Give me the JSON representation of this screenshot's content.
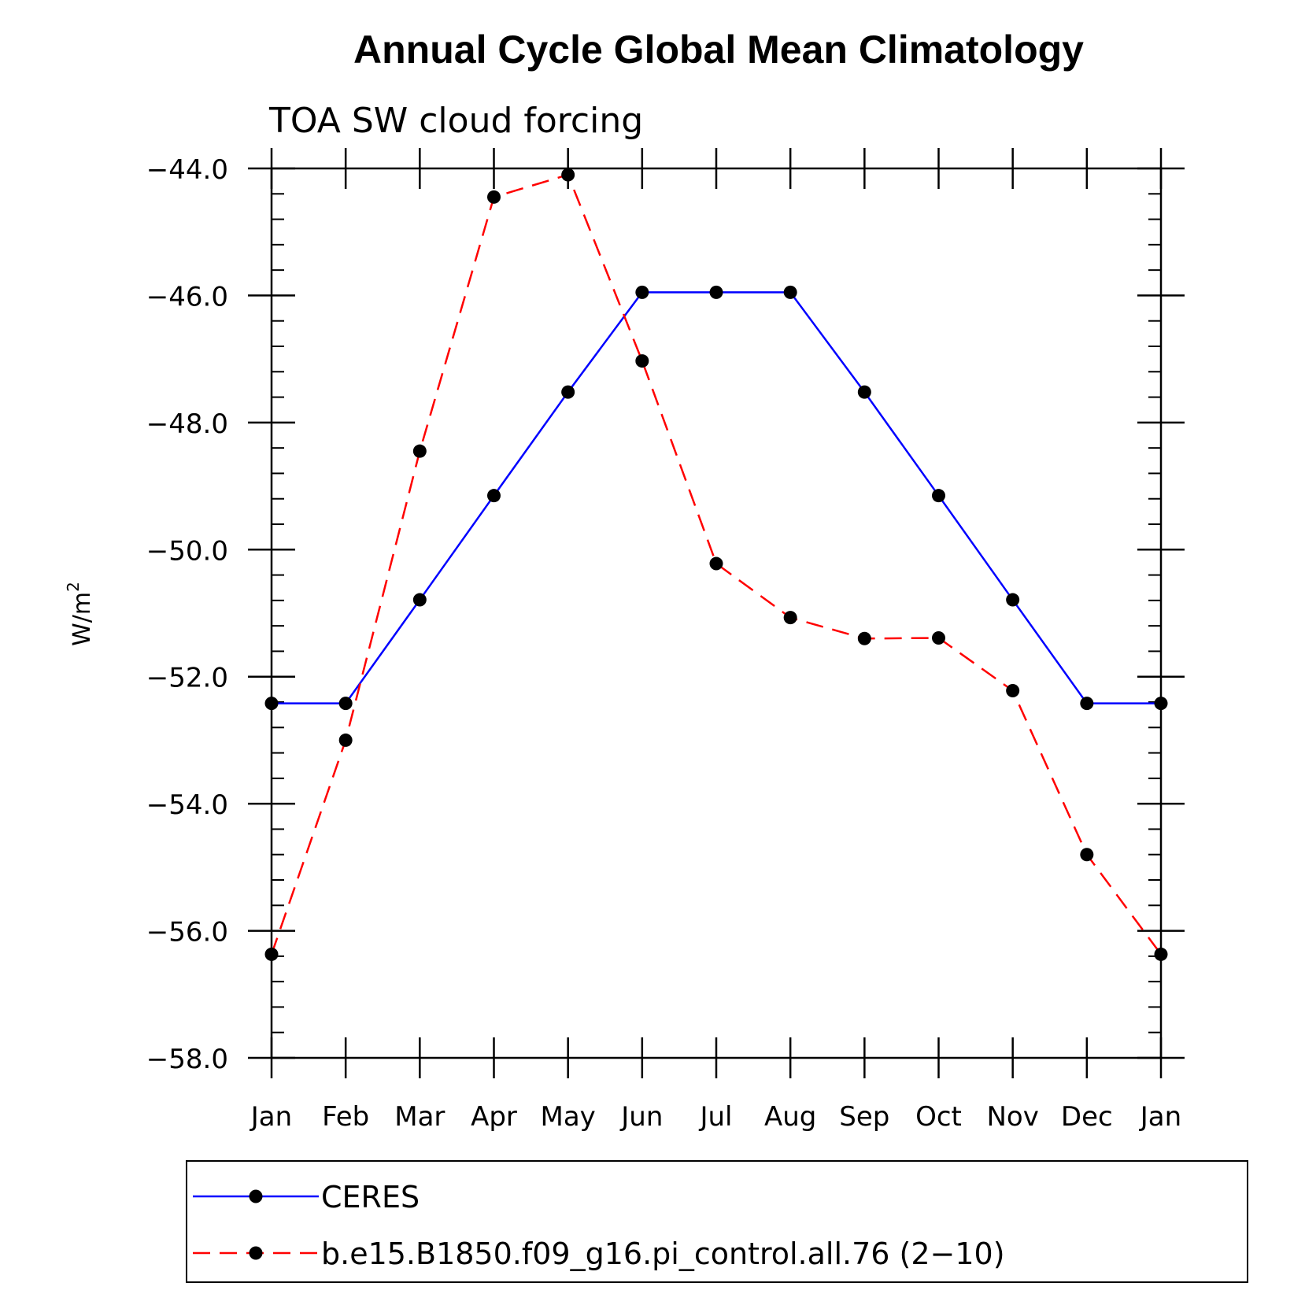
{
  "chart_data": {
    "type": "line",
    "title": "Annual Cycle Global Mean Climatology",
    "subtitle": "TOA SW cloud forcing",
    "ylabel": "W/m",
    "ylabel_superscript": "2",
    "xlabel": "",
    "categories": [
      "Jan",
      "Feb",
      "Mar",
      "Apr",
      "May",
      "Jun",
      "Jul",
      "Aug",
      "Sep",
      "Oct",
      "Nov",
      "Dec",
      "Jan"
    ],
    "ylim": [
      -58.0,
      -44.0
    ],
    "yticks": [
      -44.0,
      -46.0,
      -48.0,
      -50.0,
      -52.0,
      -54.0,
      -56.0,
      -58.0
    ],
    "ytick_labels": [
      "−44.0",
      "−46.0",
      "−48.0",
      "−50.0",
      "−52.0",
      "−54.0",
      "−56.0",
      "−58.0"
    ],
    "grid": false,
    "legend_position": "bottom",
    "series": [
      {
        "name": "CERES",
        "color": "#0000ff",
        "dash": "solid",
        "values": [
          -52.42,
          -52.42,
          -50.79,
          -49.15,
          -47.52,
          -45.95,
          -45.95,
          -45.95,
          -47.52,
          -49.15,
          -50.79,
          -52.42,
          -52.42
        ]
      },
      {
        "name": "b.e15.B1850.f09_g16.pi_control.all.76 (2−10)",
        "color": "#ff0000",
        "dash": "dashed",
        "values": [
          -56.37,
          -53.0,
          -48.45,
          -44.45,
          -44.1,
          -47.03,
          -50.22,
          -51.07,
          -51.4,
          -51.39,
          -52.22,
          -54.8,
          -56.37
        ]
      }
    ]
  }
}
